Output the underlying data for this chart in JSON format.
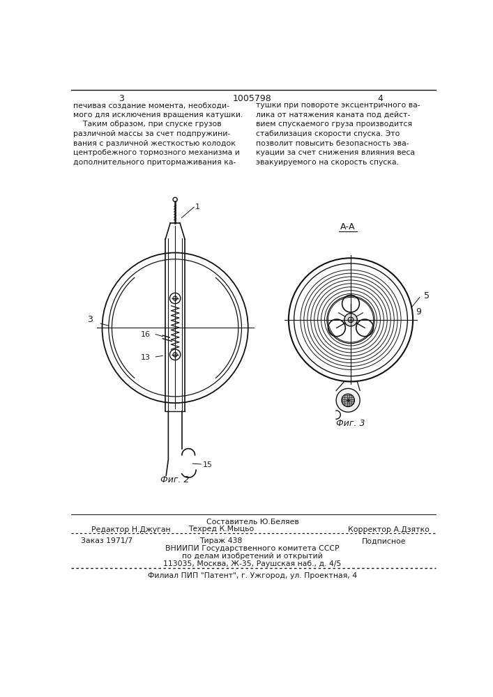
{
  "page_number_left": "3",
  "page_number_center": "1005798",
  "page_number_right": "4",
  "text_left": "печивая создание момента, необходи-\nмого для исключения вращения катушки.\n    Таким образом, при спуске грузов\nразличной массы за счет подпружини-\nвания с различной жесткостью колодок\nцентробежного тормозного механизма и\nдополнительного притормаживания ка-",
  "text_right": "тушки при повороте эксцентричного ва-\nлика от натяжения каната под дейст-\nвием спускаемого груза производится\nстабилизация скорости спуска. Это\nпозволит повысить безопасность эва-\nкуации за счет снижения влияния веса\nэвакуируемого на скорость спуска.",
  "fig2_label": "Фиг. 2",
  "fig3_label": "Фиг. 3",
  "fig3_section_label": "А-А",
  "label_1": "1",
  "label_3": "3",
  "label_5": "5",
  "label_9": "9",
  "label_13": "13",
  "label_15": "15",
  "label_16": "16",
  "footer_line1": "Составитель Ю.Беляев",
  "footer_line2_left": "Редактор Н.Джуган",
  "footer_line2_center": "Техред К.Мыцьо",
  "footer_line2_right": "Корректор А.Дзятко",
  "footer_line3_left": "Заказ 1971/7",
  "footer_line3_center": "Тираж 438",
  "footer_line3_right": "Подписное",
  "footer_line4": "ВНИИПИ Государственного комитета СССР",
  "footer_line5": "по делам изобретений и открытий",
  "footer_line6": "113035, Москва, Ж-35, Раушская наб., д. 4/5",
  "footer_line7": "Филиал ПИП \"Патент\", г. Ужгород, ул. Проектная, 4",
  "bg_color": "#ffffff",
  "text_color": "#1a1a1a",
  "line_color": "#111111"
}
